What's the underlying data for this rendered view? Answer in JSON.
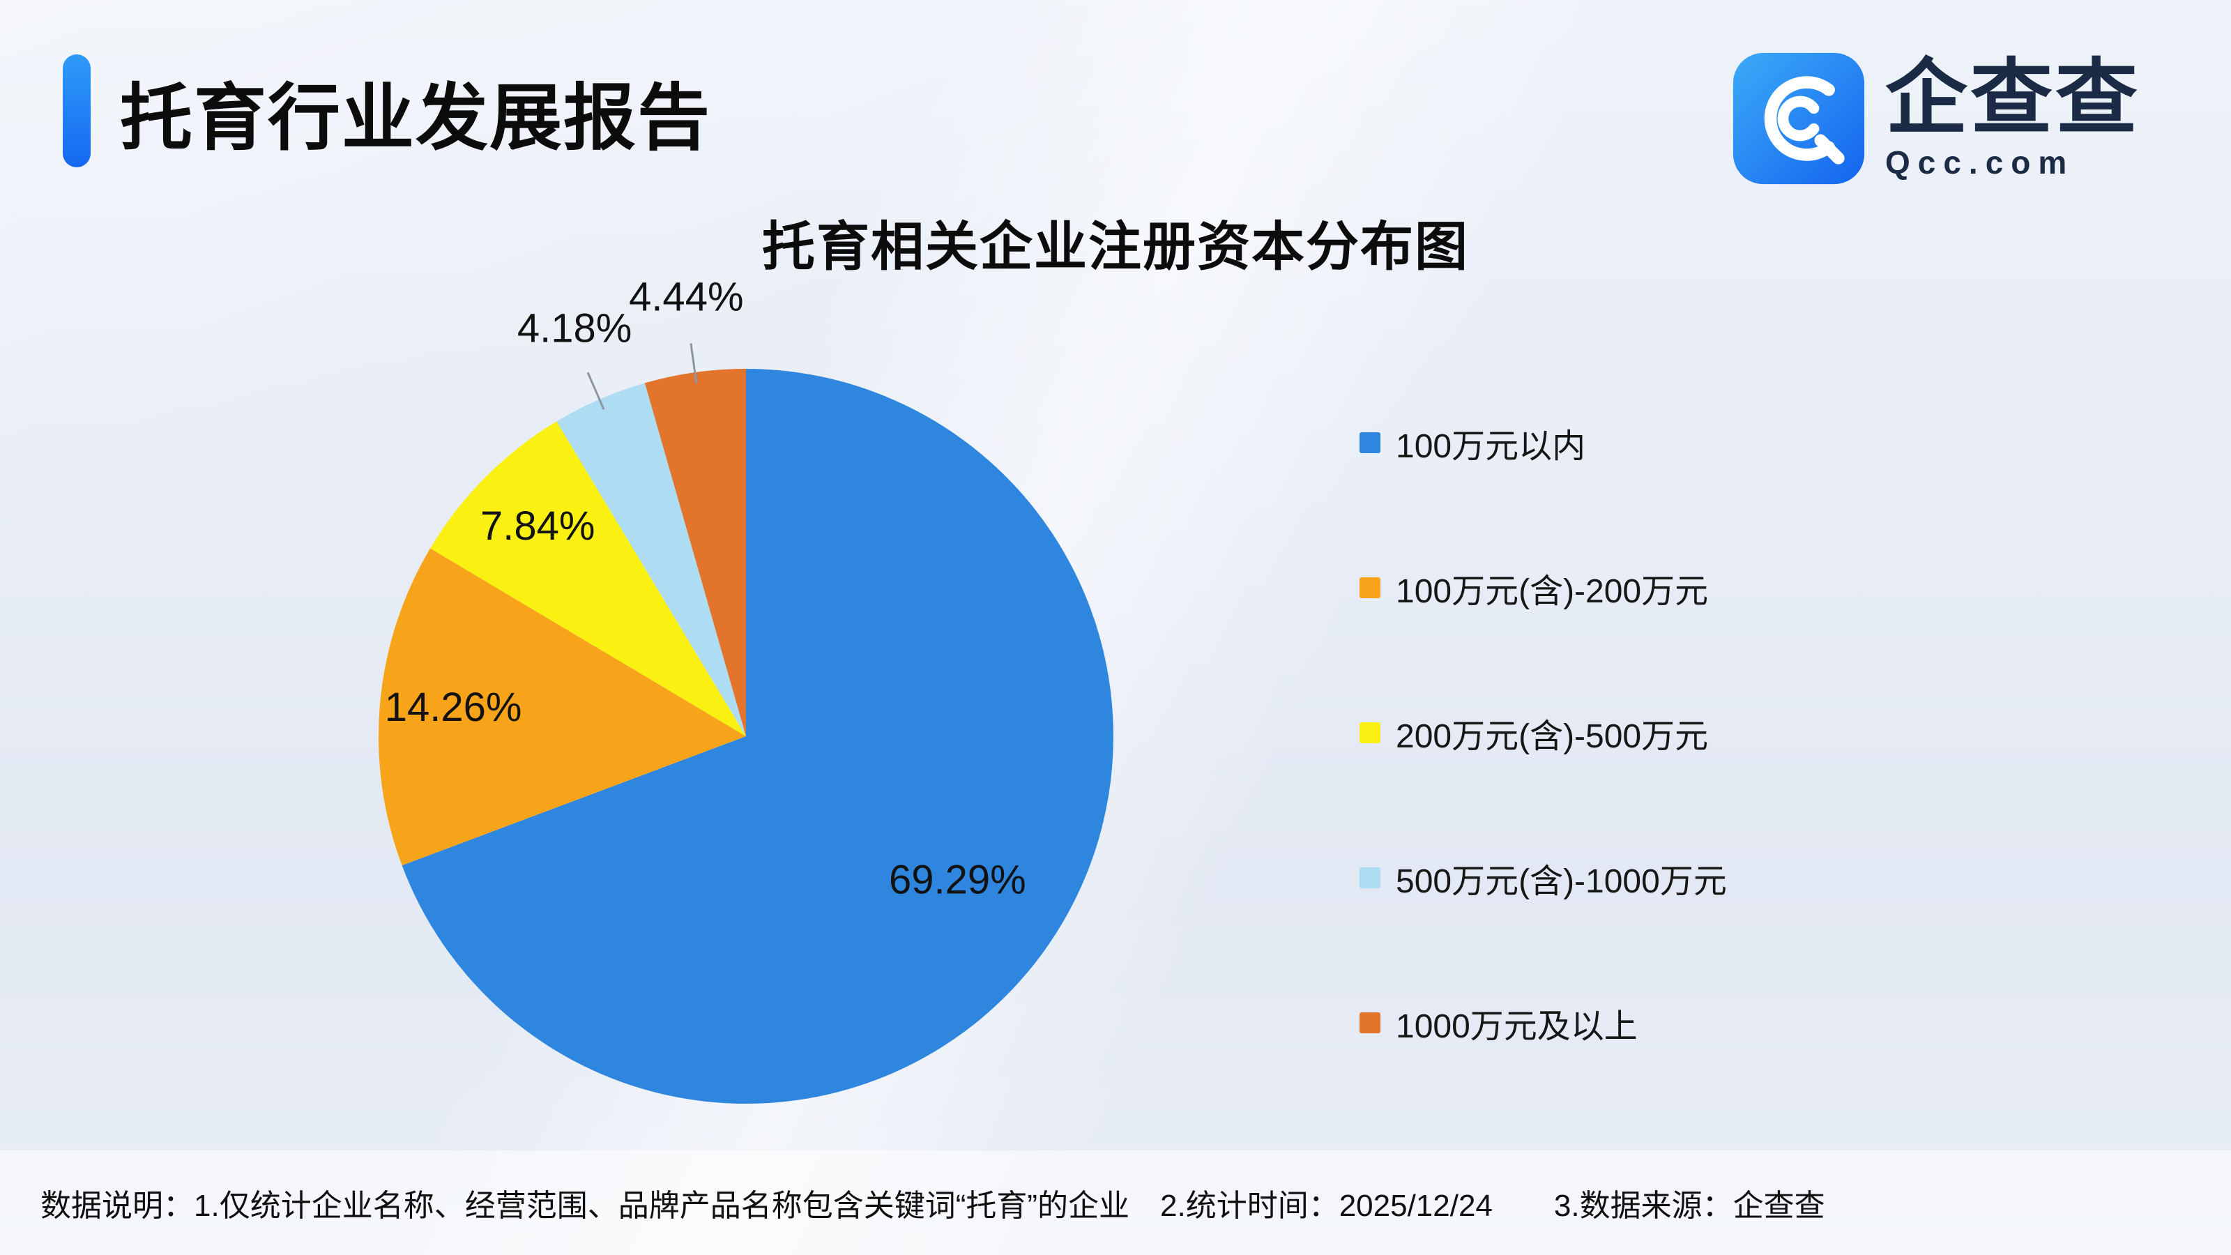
{
  "header": {
    "title": "托育行业发展报告"
  },
  "logo": {
    "name": "企查查",
    "domain": "Qcc.com"
  },
  "chart_data": {
    "type": "pie",
    "title": "托育相关企业注册资本分布图",
    "labels": [
      "100万元以内",
      "100万元(含)-200万元",
      "200万元(含)-500万元",
      "500万元(含)-1000万元",
      "1000万元及以上"
    ],
    "values": [
      69.29,
      14.26,
      7.84,
      4.18,
      4.44
    ],
    "value_labels": [
      "69.29%",
      "14.26%",
      "7.84%",
      "4.18%",
      "4.44%"
    ],
    "colors": [
      "#2E86DE",
      "#F8A41B",
      "#FAF011",
      "#AEDCF2",
      "#E2742B"
    ],
    "start_angle_deg": 0,
    "direction": "clockwise",
    "legend_position": "right"
  },
  "footer": {
    "note": "数据说明：1.仅统计企业名称、经营范围、品牌产品名称包含关键词“托育”的企业　2.统计时间：2025/12/24　　3.数据来源：企查查"
  }
}
